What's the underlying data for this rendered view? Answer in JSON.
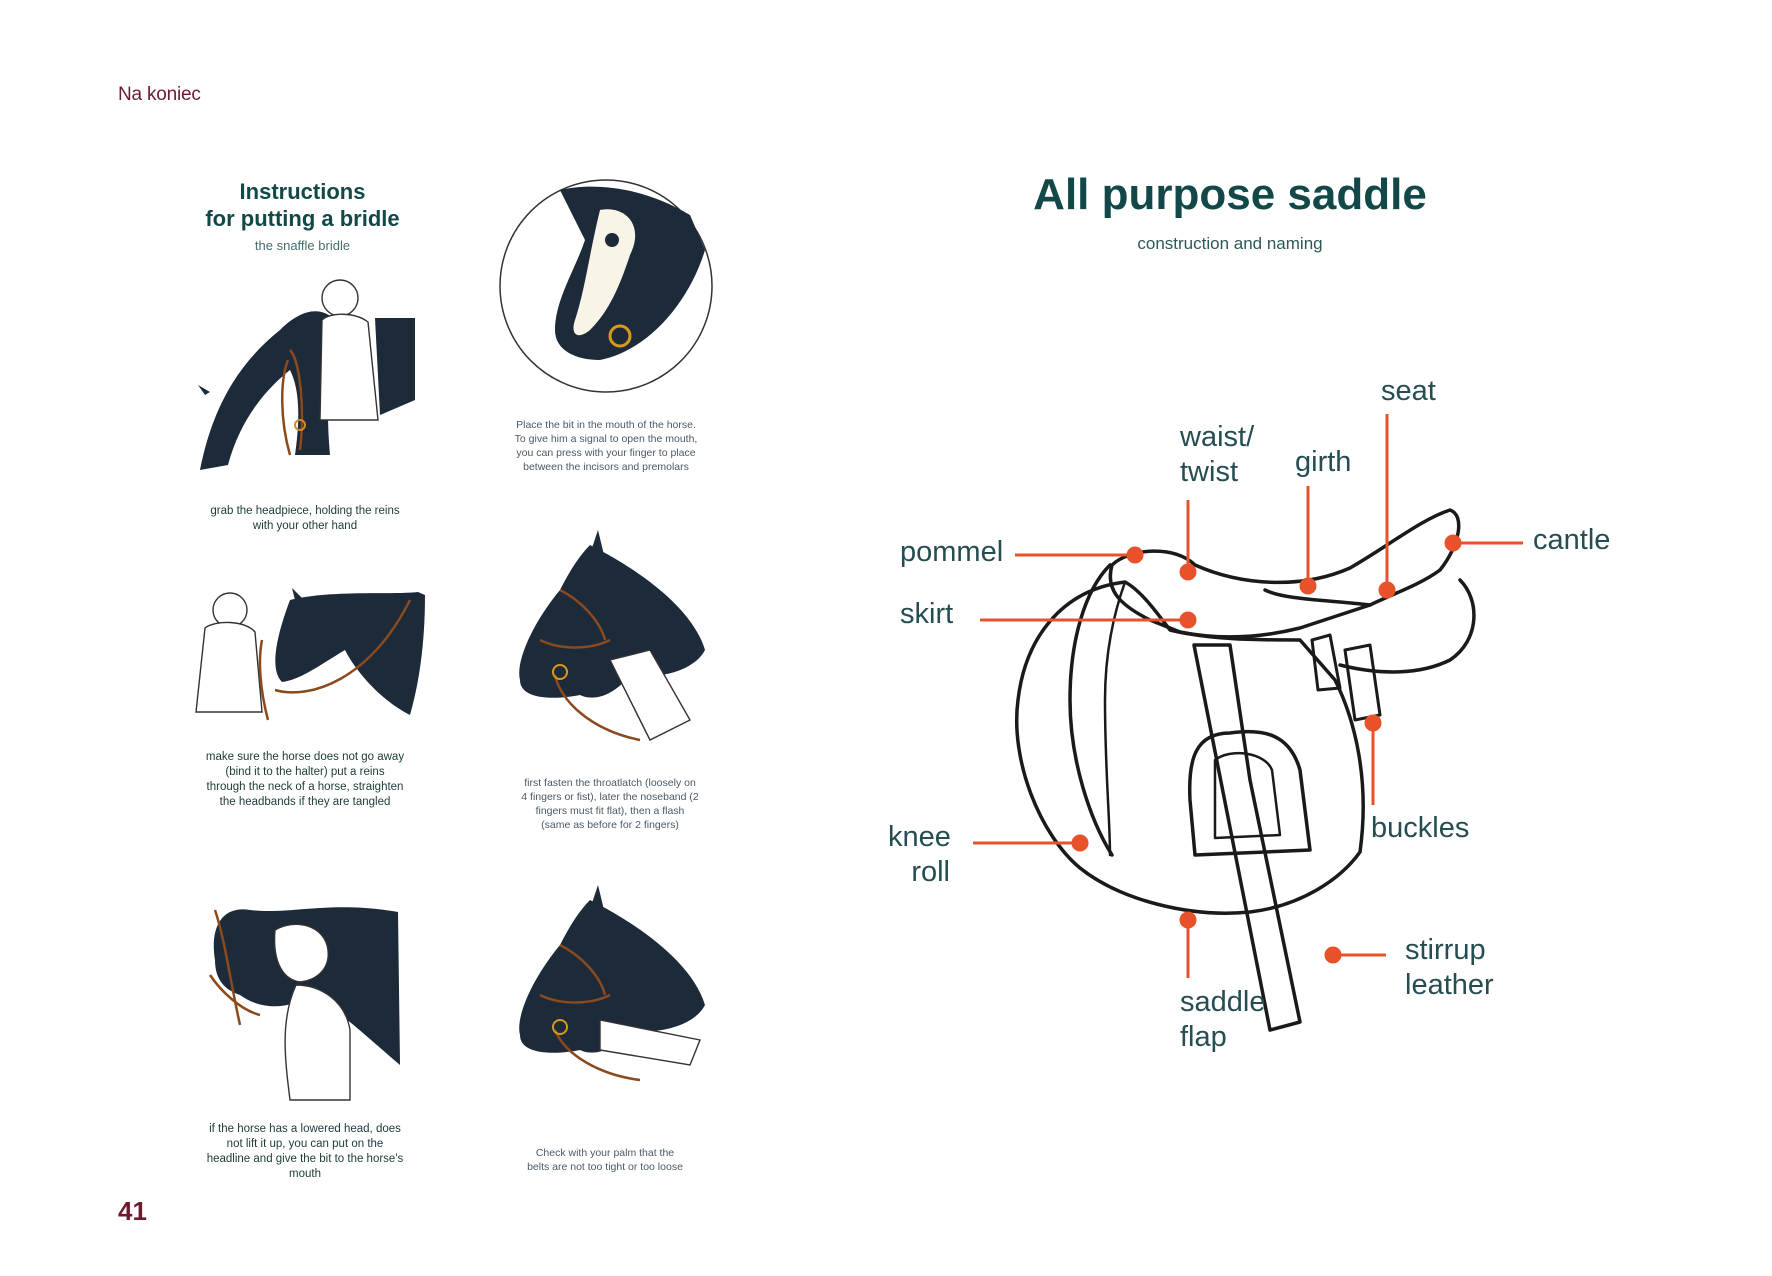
{
  "header": {
    "section": "Na koniec",
    "page_number": "41"
  },
  "instructions": {
    "title_line1": "Instructions",
    "title_line2": "for putting a bridle",
    "subtitle": "the snaffle bridle",
    "steps": [
      "grab the headpiece, holding the reins with your other hand",
      "Place the bit in the mouth of the horse. To give him a signal to open the mouth, you can press with your finger to place between the incisors and premolars",
      "make sure the horse does not go away (bind it to the halter) put a reins through the neck of a horse, straighten the headbands if they are tangled",
      "first fasten the throatlatch (loosely on 4 fingers or fist), later the noseband (2 fingers must fit flat), then a flash (same as before for 2 fingers)",
      "if the horse has a lowered head, does not lift it up, you can put on the headline and give the bit to the horse's mouth",
      "Check with your palm that the belts are not too tight or too loose"
    ]
  },
  "saddle": {
    "title": "All purpose saddle",
    "subtitle": "construction and naming",
    "labels": {
      "seat": "seat",
      "waist_line1": "waist/",
      "waist_line2": "twist",
      "girth": "girth",
      "pommel": "pommel",
      "cantle": "cantle",
      "skirt": "skirt",
      "buckles": "buckles",
      "knee_line1": "knee",
      "knee_line2": "roll",
      "stirrup_line1": "stirrup",
      "stirrup_line2": "leather",
      "flap_line1": "saddle",
      "flap_line2": "flap"
    }
  },
  "colors": {
    "accent": "#e8522b",
    "title": "#124848",
    "horse": "#1c2a3a",
    "leather": "#8a4a1e",
    "header": "#6e1b2e"
  }
}
